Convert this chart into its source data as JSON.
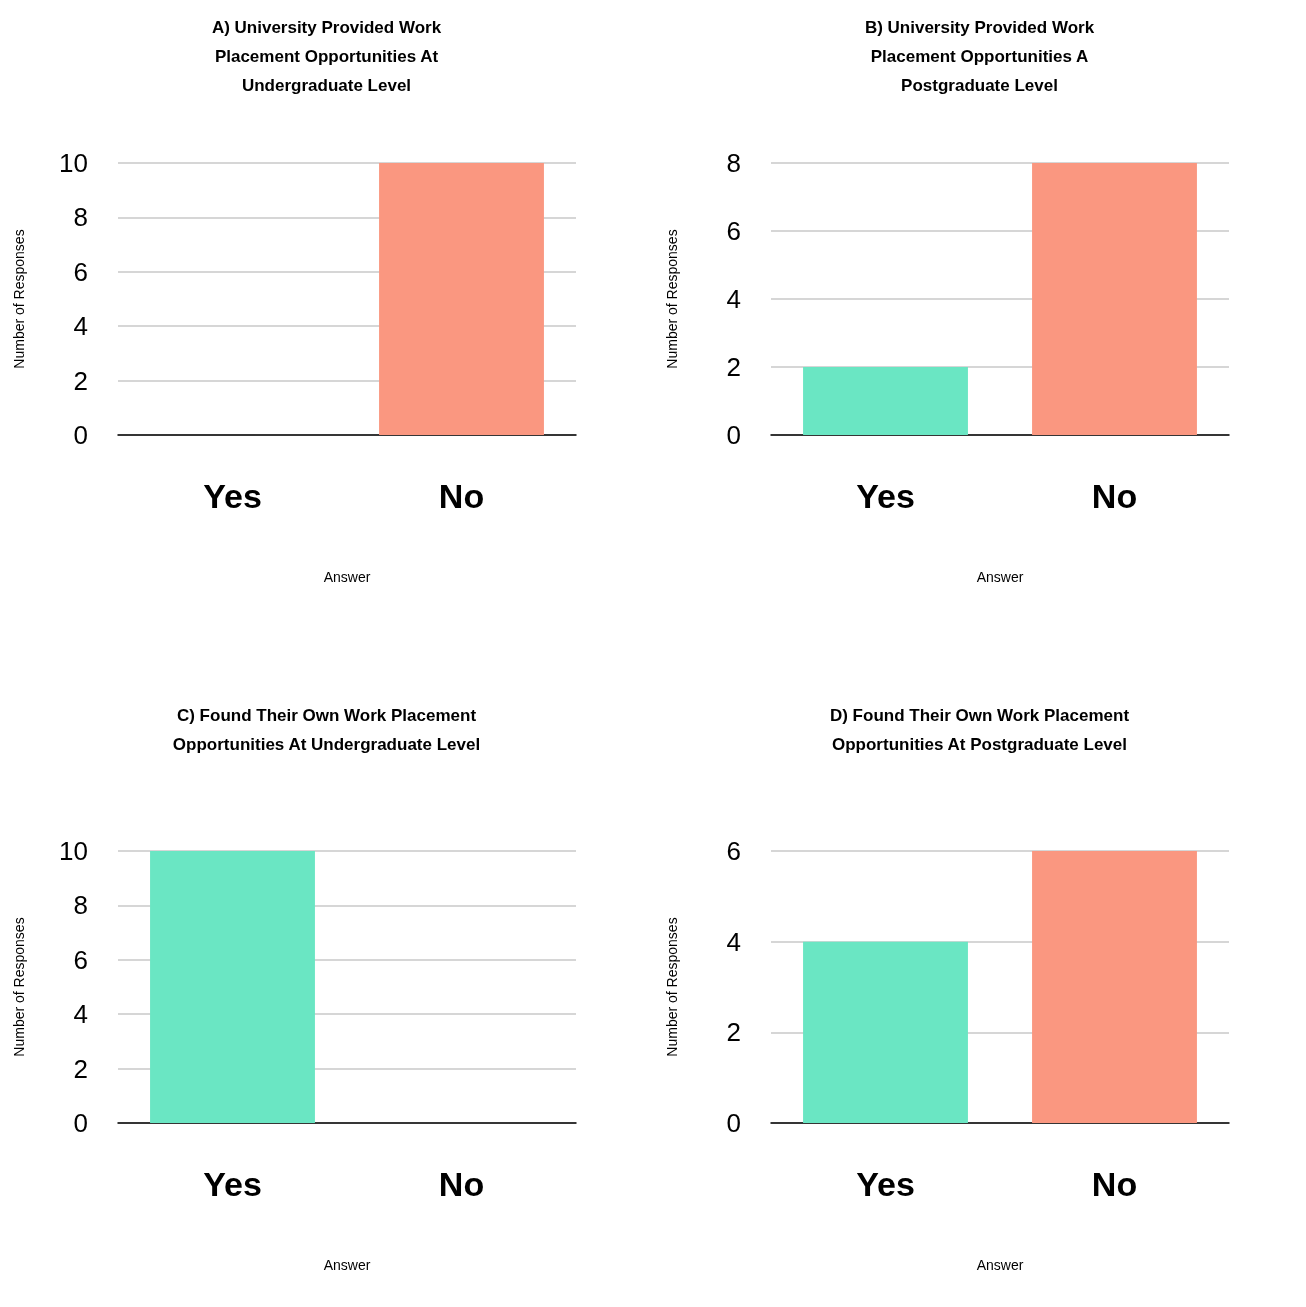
{
  "chart_data": [
    {
      "type": "bar",
      "title": "A) University Provided Work\nPlacement Opportunities At\nUndergraduate Level",
      "xlabel": "Answer",
      "ylabel": "Number of Responses",
      "categories": [
        "Yes",
        "No"
      ],
      "values": [
        0,
        10
      ],
      "colors": [
        "#6ae6c3",
        "#fa9780"
      ],
      "ylim": [
        0,
        10
      ],
      "yticks": [
        0,
        2,
        4,
        6,
        8,
        10
      ],
      "grid": "y"
    },
    {
      "type": "bar",
      "title": "B) University Provided Work\nPlacement Opportunities A\nPostgraduate Level",
      "xlabel": "Answer",
      "ylabel": "Number of Responses",
      "categories": [
        "Yes",
        "No"
      ],
      "values": [
        2,
        8
      ],
      "colors": [
        "#6ae6c3",
        "#fa9780"
      ],
      "ylim": [
        0,
        8
      ],
      "yticks": [
        0,
        2,
        4,
        6,
        8
      ],
      "grid": "y"
    },
    {
      "type": "bar",
      "title": "C) Found Their Own Work Placement\nOpportunities At Undergraduate Level",
      "xlabel": "Answer",
      "ylabel": "Number of Responses",
      "categories": [
        "Yes",
        "No"
      ],
      "values": [
        10,
        0
      ],
      "colors": [
        "#6ae6c3",
        "#fa9780"
      ],
      "ylim": [
        0,
        10
      ],
      "yticks": [
        0,
        2,
        4,
        6,
        8,
        10
      ],
      "grid": "y"
    },
    {
      "type": "bar",
      "title": "D) Found Their Own Work Placement\nOpportunities At Postgraduate Level",
      "xlabel": "Answer",
      "ylabel": "Number of Responses",
      "categories": [
        "Yes",
        "No"
      ],
      "values": [
        4,
        6
      ],
      "colors": [
        "#6ae6c3",
        "#fa9780"
      ],
      "ylim": [
        0,
        6
      ],
      "yticks": [
        0,
        2,
        4,
        6
      ],
      "grid": "y"
    }
  ]
}
